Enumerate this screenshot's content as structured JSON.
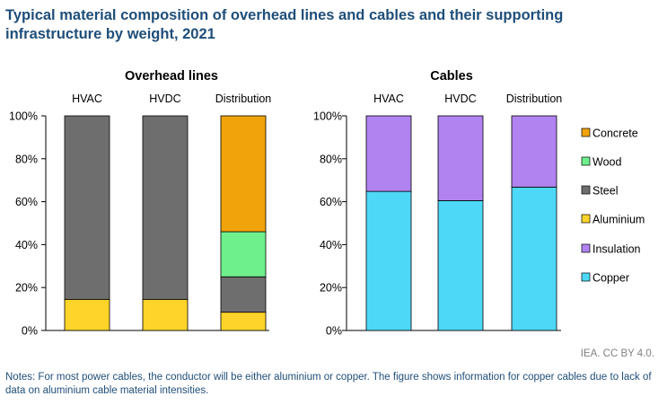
{
  "title": "Typical material composition of overhead lines and cables and their supporting infrastructure by weight, 2021",
  "credit": "IEA. CC BY 4.0.",
  "note": "Notes: For most power cables, the conductor will be either aluminium or copper. The figure shows information for copper cables due to lack of data on aluminium cable material intensities.",
  "colors": {
    "Concrete": "#f0a30a",
    "Wood": "#6ef08c",
    "Steel": "#6e6e6e",
    "Aluminium": "#ffd42a",
    "Insulation": "#b083f0",
    "Copper": "#4ed8f8"
  },
  "chart_data": [
    {
      "type": "bar",
      "stacked": true,
      "title": "Overhead lines",
      "categories": [
        "HVAC",
        "HVDC",
        "Distribution"
      ],
      "ylim": [
        0,
        100
      ],
      "yticks": [
        "0%",
        "20%",
        "40%",
        "60%",
        "80%",
        "100%"
      ],
      "series": [
        {
          "name": "Aluminium",
          "values": [
            14.5,
            14.5,
            8.5
          ]
        },
        {
          "name": "Steel",
          "values": [
            85.5,
            85.5,
            16.5
          ]
        },
        {
          "name": "Wood",
          "values": [
            0,
            0,
            21
          ]
        },
        {
          "name": "Concrete",
          "values": [
            0,
            0,
            54
          ]
        }
      ]
    },
    {
      "type": "bar",
      "stacked": true,
      "title": "Cables",
      "categories": [
        "HVAC",
        "HVDC",
        "Distribution"
      ],
      "ylim": [
        0,
        100
      ],
      "yticks": [
        "0%",
        "20%",
        "40%",
        "60%",
        "80%",
        "100%"
      ],
      "series": [
        {
          "name": "Copper",
          "values": [
            64.8,
            60.5,
            66.8
          ]
        },
        {
          "name": "Insulation",
          "values": [
            35.2,
            39.5,
            33.2
          ]
        }
      ]
    }
  ],
  "legend": {
    "position": "right",
    "items": [
      "Concrete",
      "Wood",
      "Steel",
      "Aluminium",
      "Insulation",
      "Copper"
    ]
  }
}
